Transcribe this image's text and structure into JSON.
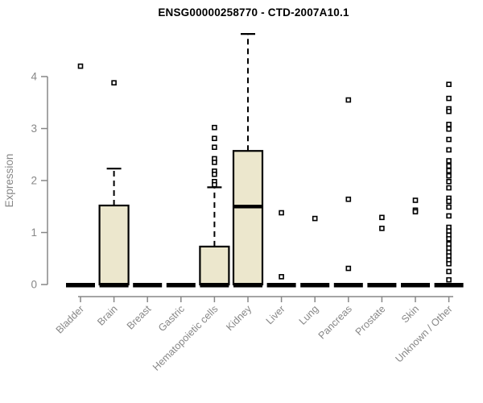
{
  "title": "ENSG00000258770 - CTD-2007A10.1",
  "chart_data": {
    "type": "boxplot",
    "title": "ENSG00000258770 - CTD-2007A10.1",
    "xlabel": "",
    "ylabel": "Expression",
    "ylim": [
      0,
      4
    ],
    "yticks": [
      0,
      1,
      2,
      3,
      4
    ],
    "grid": false,
    "legend": "none",
    "categories": [
      "Bladder",
      "Brain",
      "Breast",
      "Gastric",
      "Hematopoietic cells",
      "Kidney",
      "Liver",
      "Lung",
      "Pancreas",
      "Prostate",
      "Skin",
      "Unknown / Other"
    ],
    "boxes": [
      {
        "category": "Bladder",
        "q1": 0,
        "median": 0,
        "q3": 0,
        "whisker_low": 0,
        "whisker_high": 0,
        "outliers": [
          4.2
        ]
      },
      {
        "category": "Brain",
        "q1": 0,
        "median": 0,
        "q3": 1.52,
        "whisker_low": 0,
        "whisker_high": 2.23,
        "outliers": [
          3.88
        ]
      },
      {
        "category": "Breast",
        "q1": 0,
        "median": 0,
        "q3": 0,
        "whisker_low": 0,
        "whisker_high": 0,
        "outliers": []
      },
      {
        "category": "Gastric",
        "q1": 0,
        "median": 0,
        "q3": 0,
        "whisker_low": 0,
        "whisker_high": 0,
        "outliers": []
      },
      {
        "category": "Hematopoietic cells",
        "q1": 0,
        "median": 0,
        "q3": 0.73,
        "whisker_low": 0,
        "whisker_high": 1.87,
        "outliers": [
          3.02,
          2.81,
          2.64,
          2.42,
          2.35,
          2.18,
          2.12,
          1.98,
          1.92
        ]
      },
      {
        "category": "Kidney",
        "q1": 0,
        "median": 1.5,
        "q3": 2.57,
        "whisker_low": 0,
        "whisker_high": 4.82,
        "outliers": []
      },
      {
        "category": "Liver",
        "q1": 0,
        "median": 0,
        "q3": 0,
        "whisker_low": 0,
        "whisker_high": 0,
        "outliers": [
          1.38,
          0.15
        ]
      },
      {
        "category": "Lung",
        "q1": 0,
        "median": 0,
        "q3": 0,
        "whisker_low": 0,
        "whisker_high": 0,
        "outliers": [
          1.27
        ]
      },
      {
        "category": "Pancreas",
        "q1": 0,
        "median": 0,
        "q3": 0,
        "whisker_low": 0,
        "whisker_high": 0,
        "outliers": [
          3.55,
          1.64,
          0.31
        ]
      },
      {
        "category": "Prostate",
        "q1": 0,
        "median": 0,
        "q3": 0,
        "whisker_low": 0,
        "whisker_high": 0,
        "outliers": [
          1.29,
          1.08
        ]
      },
      {
        "category": "Skin",
        "q1": 0,
        "median": 0,
        "q3": 0,
        "whisker_low": 0,
        "whisker_high": 0,
        "outliers": [
          1.62,
          1.43,
          1.4
        ]
      },
      {
        "category": "Unknown / Other",
        "q1": 0,
        "median": 0,
        "q3": 0,
        "whisker_low": 0,
        "whisker_high": 0,
        "outliers": [
          3.85,
          3.58,
          3.38,
          3.33,
          3.08,
          2.99,
          2.79,
          2.59,
          2.38,
          2.28,
          2.19,
          2.09,
          1.98,
          1.86,
          1.66,
          1.6,
          1.49,
          1.32,
          1.1,
          1.03,
          0.95,
          0.88,
          0.78,
          0.7,
          0.62,
          0.55,
          0.47,
          0.4,
          0.25,
          0.09
        ]
      }
    ],
    "colors": {
      "box_fill": "#ece7cd",
      "box_stroke": "#000000",
      "median": "#000000",
      "whisker": "#000000",
      "outlier_stroke": "#000000",
      "outlier_fill": "#ffffff",
      "axis": "#878787",
      "title": "#000000",
      "background": "#ffffff"
    }
  }
}
